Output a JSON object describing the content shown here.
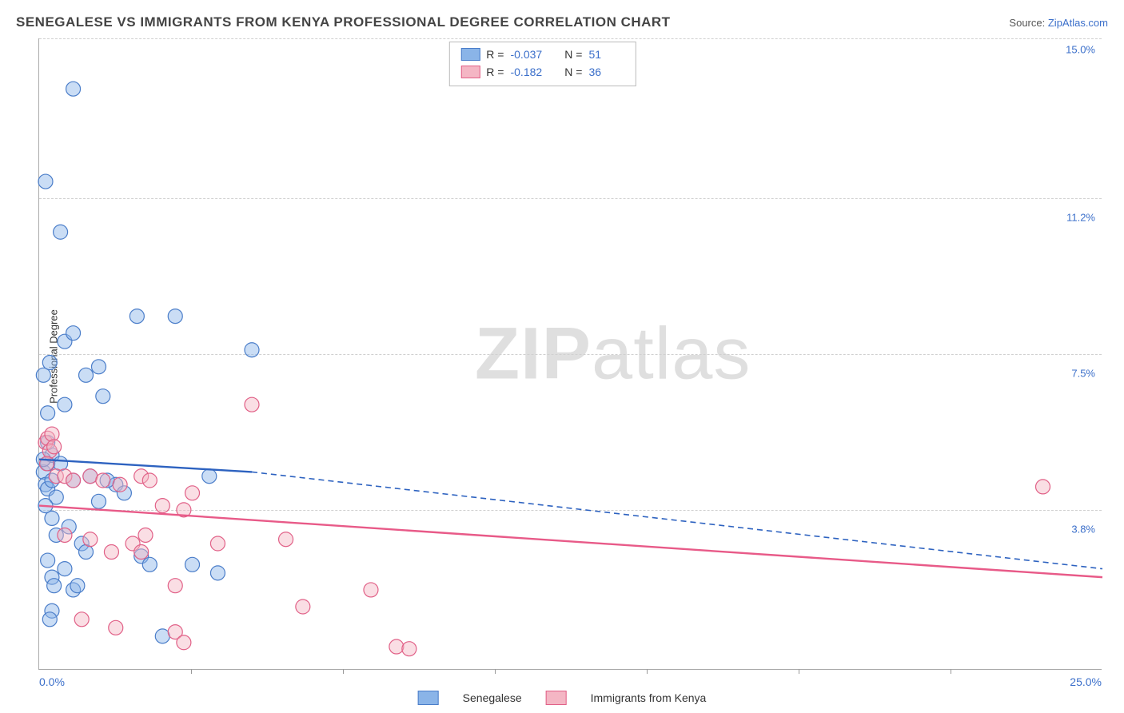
{
  "title": "SENEGALESE VS IMMIGRANTS FROM KENYA PROFESSIONAL DEGREE CORRELATION CHART",
  "source": {
    "label": "Source:",
    "link": "ZipAtlas.com"
  },
  "ylabel": "Professional Degree",
  "watermark": {
    "bold": "ZIP",
    "rest": "atlas"
  },
  "chart": {
    "type": "scatter",
    "xlim": [
      0,
      25
    ],
    "ylim": [
      0,
      15
    ],
    "xlim_labels": {
      "min": "0.0%",
      "max": "25.0%"
    },
    "yticks": [
      3.8,
      7.5,
      11.2,
      15.0
    ],
    "ytick_labels": [
      "3.8%",
      "7.5%",
      "11.2%",
      "15.0%"
    ],
    "x_minor_ticks": [
      3.57,
      7.14,
      10.71,
      14.29,
      17.86,
      21.43
    ],
    "marker_radius": 9,
    "background_color": "#ffffff",
    "grid_color": "#d0d0d0",
    "series": [
      {
        "name": "Senegalese",
        "color_fill": "#8ab4e8",
        "color_stroke": "#4a7dc9",
        "R": "-0.037",
        "N": "51",
        "points": [
          [
            0.1,
            4.7
          ],
          [
            0.15,
            4.4
          ],
          [
            0.2,
            4.9
          ],
          [
            0.2,
            4.3
          ],
          [
            0.3,
            5.1
          ],
          [
            0.3,
            4.5
          ],
          [
            0.4,
            4.1
          ],
          [
            0.3,
            3.6
          ],
          [
            0.25,
            7.3
          ],
          [
            0.6,
            7.8
          ],
          [
            0.8,
            8.0
          ],
          [
            1.1,
            7.0
          ],
          [
            1.4,
            7.2
          ],
          [
            1.5,
            6.5
          ],
          [
            0.6,
            6.3
          ],
          [
            0.2,
            6.1
          ],
          [
            0.5,
            10.4
          ],
          [
            0.15,
            11.6
          ],
          [
            0.8,
            13.8
          ],
          [
            2.3,
            8.4
          ],
          [
            3.2,
            8.4
          ],
          [
            5.0,
            7.6
          ],
          [
            0.2,
            2.6
          ],
          [
            0.3,
            2.2
          ],
          [
            0.6,
            2.4
          ],
          [
            0.8,
            1.9
          ],
          [
            0.9,
            2.0
          ],
          [
            0.3,
            1.4
          ],
          [
            0.4,
            3.2
          ],
          [
            0.7,
            3.4
          ],
          [
            1.0,
            3.0
          ],
          [
            1.2,
            4.6
          ],
          [
            1.4,
            4.0
          ],
          [
            1.8,
            4.4
          ],
          [
            2.4,
            2.7
          ],
          [
            2.6,
            2.5
          ],
          [
            2.9,
            0.8
          ],
          [
            3.6,
            2.5
          ],
          [
            4.0,
            4.6
          ],
          [
            4.2,
            2.3
          ],
          [
            0.2,
            5.4
          ],
          [
            0.1,
            5.0
          ],
          [
            0.15,
            3.9
          ],
          [
            0.5,
            4.9
          ],
          [
            0.25,
            1.2
          ],
          [
            0.35,
            2.0
          ],
          [
            0.8,
            4.5
          ],
          [
            1.1,
            2.8
          ],
          [
            1.6,
            4.5
          ],
          [
            2.0,
            4.2
          ],
          [
            0.1,
            7.0
          ]
        ],
        "trend": {
          "y_at_x0": 5.0,
          "y_at_solid_end": 4.7,
          "solid_end_x": 5.0,
          "y_at_xmax": 2.4
        }
      },
      {
        "name": "Immigrants from Kenya",
        "color_fill": "#f4b6c4",
        "color_stroke": "#e16087",
        "R": "-0.182",
        "N": "36",
        "points": [
          [
            0.15,
            5.4
          ],
          [
            0.2,
            5.5
          ],
          [
            0.25,
            5.2
          ],
          [
            0.3,
            5.6
          ],
          [
            0.35,
            5.3
          ],
          [
            0.18,
            4.9
          ],
          [
            0.4,
            4.6
          ],
          [
            0.6,
            4.6
          ],
          [
            0.8,
            4.5
          ],
          [
            1.2,
            4.6
          ],
          [
            1.5,
            4.5
          ],
          [
            1.9,
            4.4
          ],
          [
            2.4,
            4.6
          ],
          [
            2.6,
            4.5
          ],
          [
            2.9,
            3.9
          ],
          [
            3.4,
            3.8
          ],
          [
            3.6,
            4.2
          ],
          [
            0.6,
            3.2
          ],
          [
            1.2,
            3.1
          ],
          [
            1.7,
            2.8
          ],
          [
            2.2,
            3.0
          ],
          [
            2.4,
            2.8
          ],
          [
            2.5,
            3.2
          ],
          [
            5.0,
            6.3
          ],
          [
            3.2,
            0.9
          ],
          [
            3.4,
            0.65
          ],
          [
            5.8,
            3.1
          ],
          [
            6.2,
            1.5
          ],
          [
            7.8,
            1.9
          ],
          [
            8.4,
            0.55
          ],
          [
            8.7,
            0.5
          ],
          [
            1.0,
            1.2
          ],
          [
            1.8,
            1.0
          ],
          [
            3.2,
            2.0
          ],
          [
            4.2,
            3.0
          ],
          [
            23.6,
            4.35
          ]
        ],
        "trend": {
          "y_at_x0": 3.9,
          "y_at_xmax": 2.2
        }
      }
    ]
  },
  "stats_box": {
    "R_label": "R =",
    "N_label": "N ="
  },
  "legend": {
    "series1": "Senegalese",
    "series2": "Immigrants from Kenya"
  }
}
